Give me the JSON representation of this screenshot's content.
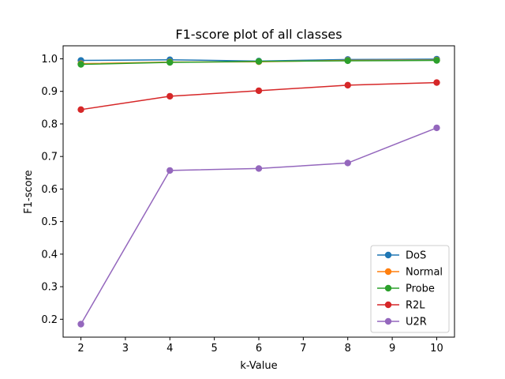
{
  "chart_data": {
    "type": "line",
    "title": "F1-score plot of all classes",
    "xlabel": "k-Value",
    "ylabel": "F1-score",
    "x": [
      2,
      4,
      6,
      8,
      10
    ],
    "xlim": [
      1.6,
      10.4
    ],
    "ylim": [
      0.145,
      1.04
    ],
    "xticks": [
      "2",
      "3",
      "4",
      "5",
      "6",
      "7",
      "8",
      "9",
      "10"
    ],
    "yticks": [
      "0.2",
      "0.3",
      "0.4",
      "0.5",
      "0.6",
      "0.7",
      "0.8",
      "0.9",
      "1.0"
    ],
    "grid": false,
    "legend_position": "lower-right",
    "series": [
      {
        "name": "DoS",
        "color": "#1f77b4",
        "values": [
          0.995,
          0.997,
          0.993,
          0.998,
          0.999
        ]
      },
      {
        "name": "Normal",
        "color": "#ff7f0e",
        "values": [
          0.985,
          0.99,
          0.991,
          0.995,
          0.996
        ]
      },
      {
        "name": "Probe",
        "color": "#2ca02c",
        "values": [
          0.983,
          0.989,
          0.992,
          0.994,
          0.995
        ]
      },
      {
        "name": "R2L",
        "color": "#d62728",
        "values": [
          0.844,
          0.885,
          0.902,
          0.919,
          0.927
        ]
      },
      {
        "name": "U2R",
        "color": "#9467bd",
        "values": [
          0.185,
          0.657,
          0.663,
          0.68,
          0.788
        ]
      }
    ]
  }
}
